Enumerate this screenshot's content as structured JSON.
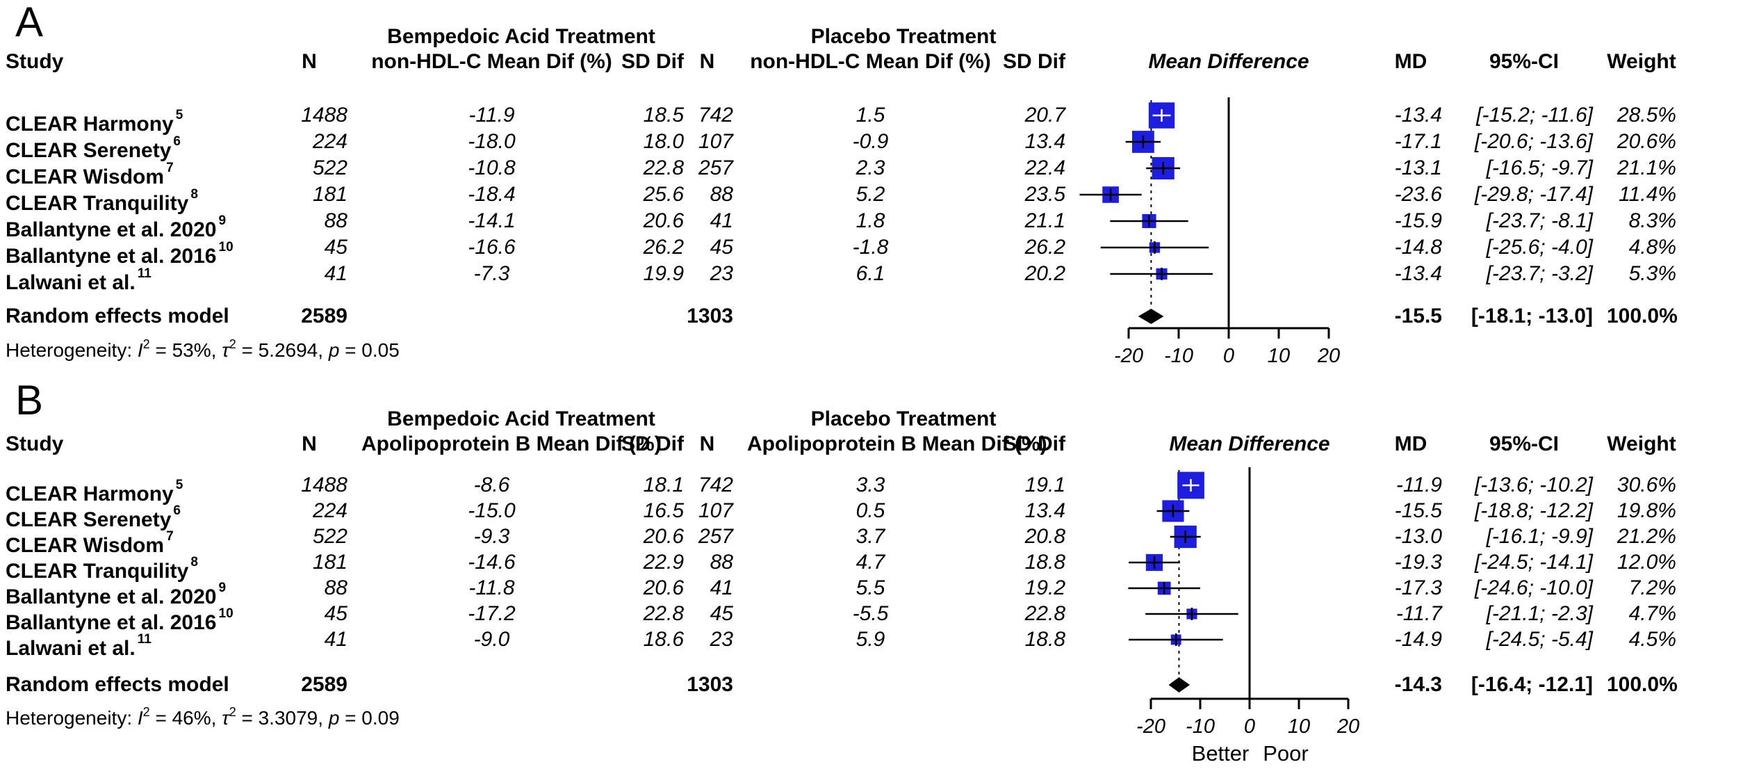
{
  "colors": {
    "square": "#1e1ee0",
    "diamond": "#000000",
    "line": "#000000",
    "inner_ci": "#ffffff",
    "background": "#ffffff",
    "text": "#000000"
  },
  "chart_data": [
    {
      "panel_label": "A",
      "type": "scatter",
      "subtype": "forest-plot",
      "outcome": "non-HDL-C",
      "group_headers": {
        "treatment": "Bempedoic Acid Treatment",
        "placebo": "Placebo Treatment"
      },
      "col_headers": {
        "study": "Study",
        "n_treat": "N",
        "mean_treat": "non-HDL-C Mean Dif (%)",
        "sd_treat": "SD Dif",
        "n_placebo": "N",
        "mean_placebo": "non-HDL-C Mean Dif (%)",
        "sd_placebo": "SD Dif",
        "plot": "Mean Difference",
        "md": "MD",
        "ci": "95%-CI",
        "weight": "Weight"
      },
      "studies": [
        {
          "name": "CLEAR Harmony",
          "ref": "5",
          "n_treat": "1488",
          "mean_treat": "-11.9",
          "sd_treat": "18.5",
          "n_placebo": "742",
          "mean_placebo": "1.5",
          "sd_placebo": "20.7",
          "md": -13.4,
          "ci_lo": -15.2,
          "ci_hi": -11.6,
          "md_text": "-13.4",
          "ci_text": "[-15.2; -11.6]",
          "weight": 28.5,
          "weight_text": "28.5%"
        },
        {
          "name": "CLEAR Serenety",
          "ref": "6",
          "n_treat": "224",
          "mean_treat": "-18.0",
          "sd_treat": "18.0",
          "n_placebo": "107",
          "mean_placebo": "-0.9",
          "sd_placebo": "13.4",
          "md": -17.1,
          "ci_lo": -20.6,
          "ci_hi": -13.6,
          "md_text": "-17.1",
          "ci_text": "[-20.6; -13.6]",
          "weight": 20.6,
          "weight_text": "20.6%"
        },
        {
          "name": "CLEAR Wisdom",
          "ref": "7",
          "n_treat": "522",
          "mean_treat": "-10.8",
          "sd_treat": "22.8",
          "n_placebo": "257",
          "mean_placebo": "2.3",
          "sd_placebo": "22.4",
          "md": -13.1,
          "ci_lo": -16.5,
          "ci_hi": -9.7,
          "md_text": "-13.1",
          "ci_text": "[-16.5;  -9.7]",
          "weight": 21.1,
          "weight_text": "21.1%"
        },
        {
          "name": "CLEAR Tranquility",
          "ref": "8",
          "n_treat": "181",
          "mean_treat": "-18.4",
          "sd_treat": "25.6",
          "n_placebo": "88",
          "mean_placebo": "5.2",
          "sd_placebo": "23.5",
          "md": -23.6,
          "ci_lo": -29.8,
          "ci_hi": -17.4,
          "md_text": "-23.6",
          "ci_text": "[-29.8; -17.4]",
          "weight": 11.4,
          "weight_text": "11.4%"
        },
        {
          "name": "Ballantyne et al. 2020",
          "ref": "9",
          "n_treat": "88",
          "mean_treat": "-14.1",
          "sd_treat": "20.6",
          "n_placebo": "41",
          "mean_placebo": "1.8",
          "sd_placebo": "21.1",
          "md": -15.9,
          "ci_lo": -23.7,
          "ci_hi": -8.1,
          "md_text": "-15.9",
          "ci_text": "[-23.7;  -8.1]",
          "weight": 8.3,
          "weight_text": "8.3%"
        },
        {
          "name": "Ballantyne et al. 2016",
          "ref": "10",
          "n_treat": "45",
          "mean_treat": "-16.6",
          "sd_treat": "26.2",
          "n_placebo": "45",
          "mean_placebo": "-1.8",
          "sd_placebo": "26.2",
          "md": -14.8,
          "ci_lo": -25.6,
          "ci_hi": -4.0,
          "md_text": "-14.8",
          "ci_text": "[-25.6;  -4.0]",
          "weight": 4.8,
          "weight_text": "4.8%"
        },
        {
          "name": "Lalwani et al.",
          "ref": "11",
          "n_treat": "41",
          "mean_treat": "-7.3",
          "sd_treat": "19.9",
          "n_placebo": "23",
          "mean_placebo": "6.1",
          "sd_placebo": "20.2",
          "md": -13.4,
          "ci_lo": -23.7,
          "ci_hi": -3.2,
          "md_text": "-13.4",
          "ci_text": "[-23.7;  -3.2]",
          "weight": 5.3,
          "weight_text": "5.3%"
        }
      ],
      "summary": {
        "label": "Random effects model",
        "n_treat": "2589",
        "n_placebo": "1303",
        "md": -15.5,
        "ci_lo": -18.1,
        "ci_hi": -13.0,
        "md_text": "-15.5",
        "ci_text": "[-18.1; -13.0]",
        "weight_text": "100.0%"
      },
      "heterogeneity": [
        [
          "Heterogeneity: ",
          "plain"
        ],
        [
          "I",
          "it"
        ],
        [
          "2",
          "sup"
        ],
        [
          " = 53%, ",
          "plain"
        ],
        [
          "τ",
          "it"
        ],
        [
          "2",
          "sup"
        ],
        [
          " = 5.2694, ",
          "plain"
        ],
        [
          "p",
          "it"
        ],
        [
          " = 0.05",
          "plain"
        ]
      ],
      "x_axis": {
        "tick_values": [
          -20,
          -10,
          0,
          10,
          20
        ],
        "ticks": [
          "-20",
          "-10",
          "0",
          "10",
          "20"
        ],
        "range": [
          -20,
          20
        ]
      },
      "footer_labels": []
    },
    {
      "panel_label": "B",
      "type": "scatter",
      "subtype": "forest-plot",
      "outcome": "Apolipoprotein B",
      "group_headers": {
        "treatment": "Bempedoic Acid Treatment",
        "placebo": "Placebo Treatment"
      },
      "col_headers": {
        "study": "Study",
        "n_treat": "N",
        "mean_treat": "Apolipoprotein B Mean Dif (%)",
        "sd_treat": "SD Dif",
        "n_placebo": "N",
        "mean_placebo": "Apolipoprotein B Mean Dif (%)",
        "sd_placebo": "SD Dif",
        "plot": "Mean Difference",
        "md": "MD",
        "ci": "95%-CI",
        "weight": "Weight"
      },
      "studies": [
        {
          "name": "CLEAR Harmony",
          "ref": "5",
          "n_treat": "1488",
          "mean_treat": "-8.6",
          "sd_treat": "18.1",
          "n_placebo": "742",
          "mean_placebo": "3.3",
          "sd_placebo": "19.1",
          "md": -11.9,
          "ci_lo": -13.6,
          "ci_hi": -10.2,
          "md_text": "-11.9",
          "ci_text": "[-13.6; -10.2]",
          "weight": 30.6,
          "weight_text": "30.6%"
        },
        {
          "name": "CLEAR Serenety",
          "ref": "6",
          "n_treat": "224",
          "mean_treat": "-15.0",
          "sd_treat": "16.5",
          "n_placebo": "107",
          "mean_placebo": "0.5",
          "sd_placebo": "13.4",
          "md": -15.5,
          "ci_lo": -18.8,
          "ci_hi": -12.2,
          "md_text": "-15.5",
          "ci_text": "[-18.8; -12.2]",
          "weight": 19.8,
          "weight_text": "19.8%"
        },
        {
          "name": "CLEAR Wisdom",
          "ref": "7",
          "n_treat": "522",
          "mean_treat": "-9.3",
          "sd_treat": "20.6",
          "n_placebo": "257",
          "mean_placebo": "3.7",
          "sd_placebo": "20.8",
          "md": -13.0,
          "ci_lo": -16.1,
          "ci_hi": -9.9,
          "md_text": "-13.0",
          "ci_text": "[-16.1;  -9.9]",
          "weight": 21.2,
          "weight_text": "21.2%"
        },
        {
          "name": "CLEAR Tranquility",
          "ref": "8",
          "n_treat": "181",
          "mean_treat": "-14.6",
          "sd_treat": "22.9",
          "n_placebo": "88",
          "mean_placebo": "4.7",
          "sd_placebo": "18.8",
          "md": -19.3,
          "ci_lo": -24.5,
          "ci_hi": -14.1,
          "md_text": "-19.3",
          "ci_text": "[-24.5; -14.1]",
          "weight": 12.0,
          "weight_text": "12.0%"
        },
        {
          "name": "Ballantyne et al. 2020",
          "ref": "9",
          "n_treat": "88",
          "mean_treat": "-11.8",
          "sd_treat": "20.6",
          "n_placebo": "41",
          "mean_placebo": "5.5",
          "sd_placebo": "19.2",
          "md": -17.3,
          "ci_lo": -24.6,
          "ci_hi": -10.0,
          "md_text": "-17.3",
          "ci_text": "[-24.6; -10.0]",
          "weight": 7.2,
          "weight_text": "7.2%"
        },
        {
          "name": "Ballantyne et al. 2016",
          "ref": "10",
          "n_treat": "45",
          "mean_treat": "-17.2",
          "sd_treat": "22.8",
          "n_placebo": "45",
          "mean_placebo": "-5.5",
          "sd_placebo": "22.8",
          "md": -11.7,
          "ci_lo": -21.1,
          "ci_hi": -2.3,
          "md_text": "-11.7",
          "ci_text": "[-21.1;  -2.3]",
          "weight": 4.7,
          "weight_text": "4.7%"
        },
        {
          "name": "Lalwani et al.",
          "ref": "11",
          "n_treat": "41",
          "mean_treat": "-9.0",
          "sd_treat": "18.6",
          "n_placebo": "23",
          "mean_placebo": "5.9",
          "sd_placebo": "18.8",
          "md": -14.9,
          "ci_lo": -24.5,
          "ci_hi": -5.4,
          "md_text": "-14.9",
          "ci_text": "[-24.5;  -5.4]",
          "weight": 4.5,
          "weight_text": "4.5%"
        }
      ],
      "summary": {
        "label": "Random effects model",
        "n_treat": "2589",
        "n_placebo": "1303",
        "md": -14.3,
        "ci_lo": -16.4,
        "ci_hi": -12.1,
        "md_text": "-14.3",
        "ci_text": "[-16.4; -12.1]",
        "weight_text": "100.0%"
      },
      "heterogeneity": [
        [
          "Heterogeneity: ",
          "plain"
        ],
        [
          "I",
          "it"
        ],
        [
          "2",
          "sup"
        ],
        [
          " = 46%, ",
          "plain"
        ],
        [
          "τ",
          "it"
        ],
        [
          "2",
          "sup"
        ],
        [
          " = 3.3079, ",
          "plain"
        ],
        [
          "p",
          "it"
        ],
        [
          " = 0.09",
          "plain"
        ]
      ],
      "x_axis": {
        "tick_values": [
          -20,
          -10,
          0,
          10,
          20
        ],
        "ticks": [
          "-20",
          "-10",
          "0",
          "10",
          "20"
        ],
        "range": [
          -20,
          20
        ]
      },
      "footer_labels": [
        "Better",
        "Poor"
      ]
    }
  ]
}
